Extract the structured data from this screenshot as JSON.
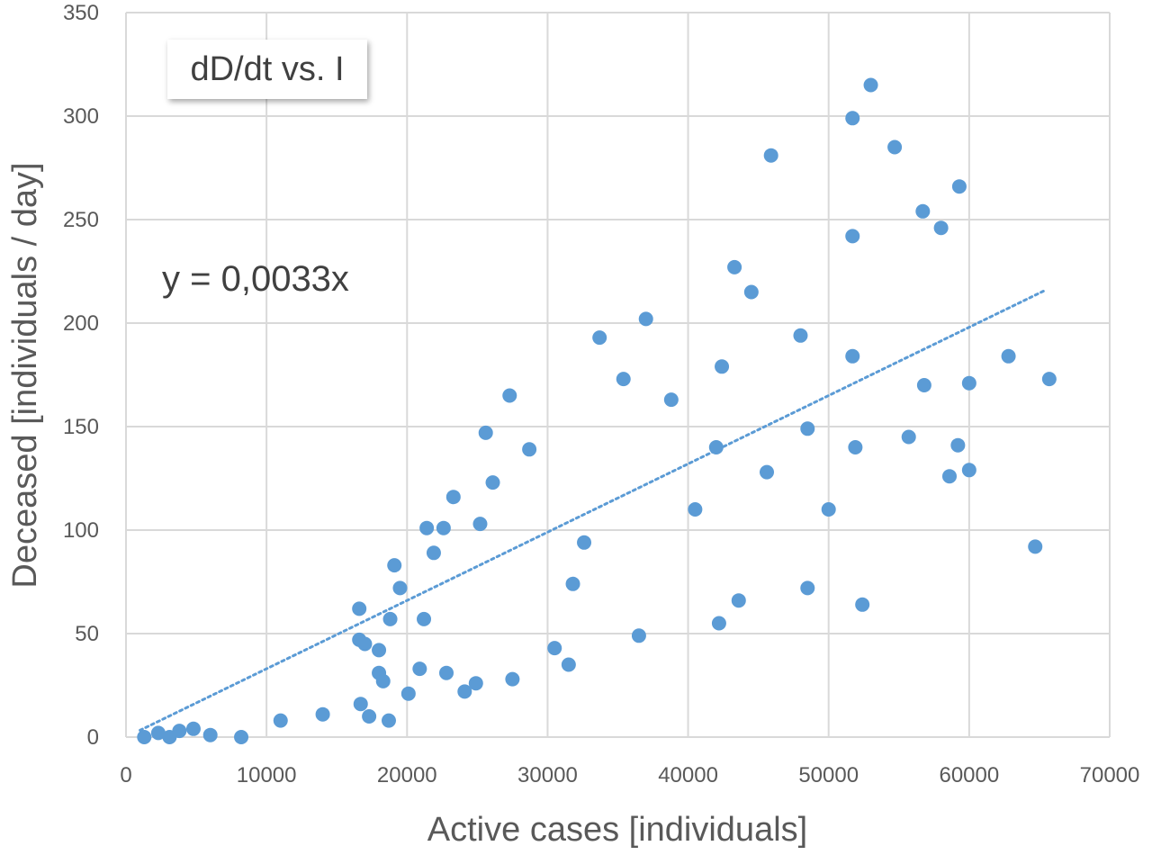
{
  "chart_data": {
    "type": "scatter",
    "title": "dD/dt vs. I",
    "xlabel": "Active cases [individuals]",
    "ylabel": "Deceased [individuals / day]",
    "xlim": [
      0,
      70000
    ],
    "ylim": [
      0,
      350
    ],
    "x_ticks": [
      "0",
      "10000",
      "20000",
      "30000",
      "40000",
      "50000",
      "60000",
      "70000"
    ],
    "y_ticks": [
      "0",
      "50",
      "100",
      "150",
      "200",
      "250",
      "300",
      "350"
    ],
    "grid": true,
    "marker_color": "#5b9bd5",
    "trendline": {
      "label": "y = 0,0033x",
      "slope": 0.0033,
      "x_range": [
        1000,
        65500
      ],
      "style": "dotted",
      "color": "#5b9bd5"
    },
    "points": [
      {
        "x": 1300,
        "y": 0
      },
      {
        "x": 2300,
        "y": 2
      },
      {
        "x": 3100,
        "y": 0
      },
      {
        "x": 3800,
        "y": 3
      },
      {
        "x": 4800,
        "y": 4
      },
      {
        "x": 6000,
        "y": 1
      },
      {
        "x": 8200,
        "y": 0
      },
      {
        "x": 11000,
        "y": 8
      },
      {
        "x": 14000,
        "y": 11
      },
      {
        "x": 16600,
        "y": 62
      },
      {
        "x": 16600,
        "y": 47
      },
      {
        "x": 17000,
        "y": 45
      },
      {
        "x": 16700,
        "y": 16
      },
      {
        "x": 17300,
        "y": 10
      },
      {
        "x": 18000,
        "y": 42
      },
      {
        "x": 18000,
        "y": 31
      },
      {
        "x": 18300,
        "y": 27
      },
      {
        "x": 18700,
        "y": 8
      },
      {
        "x": 18800,
        "y": 57
      },
      {
        "x": 19100,
        "y": 83
      },
      {
        "x": 19500,
        "y": 72
      },
      {
        "x": 20100,
        "y": 21
      },
      {
        "x": 20900,
        "y": 33
      },
      {
        "x": 21200,
        "y": 57
      },
      {
        "x": 21400,
        "y": 101
      },
      {
        "x": 21900,
        "y": 89
      },
      {
        "x": 22600,
        "y": 101
      },
      {
        "x": 22800,
        "y": 31
      },
      {
        "x": 23300,
        "y": 116
      },
      {
        "x": 24100,
        "y": 22
      },
      {
        "x": 24900,
        "y": 26
      },
      {
        "x": 25200,
        "y": 103
      },
      {
        "x": 25600,
        "y": 147
      },
      {
        "x": 26100,
        "y": 123
      },
      {
        "x": 27300,
        "y": 165
      },
      {
        "x": 27500,
        "y": 28
      },
      {
        "x": 28700,
        "y": 139
      },
      {
        "x": 30500,
        "y": 43
      },
      {
        "x": 31500,
        "y": 35
      },
      {
        "x": 31800,
        "y": 74
      },
      {
        "x": 32600,
        "y": 94
      },
      {
        "x": 33700,
        "y": 193
      },
      {
        "x": 35400,
        "y": 173
      },
      {
        "x": 36500,
        "y": 49
      },
      {
        "x": 37000,
        "y": 202
      },
      {
        "x": 38800,
        "y": 163
      },
      {
        "x": 40500,
        "y": 110
      },
      {
        "x": 42000,
        "y": 140
      },
      {
        "x": 42200,
        "y": 55
      },
      {
        "x": 42400,
        "y": 179
      },
      {
        "x": 43300,
        "y": 227
      },
      {
        "x": 43600,
        "y": 66
      },
      {
        "x": 44500,
        "y": 215
      },
      {
        "x": 45600,
        "y": 128
      },
      {
        "x": 45900,
        "y": 281
      },
      {
        "x": 48000,
        "y": 194
      },
      {
        "x": 48500,
        "y": 149
      },
      {
        "x": 48500,
        "y": 72
      },
      {
        "x": 50000,
        "y": 110
      },
      {
        "x": 51700,
        "y": 299
      },
      {
        "x": 51700,
        "y": 242
      },
      {
        "x": 51700,
        "y": 184
      },
      {
        "x": 51900,
        "y": 140
      },
      {
        "x": 52400,
        "y": 64
      },
      {
        "x": 53000,
        "y": 315
      },
      {
        "x": 54700,
        "y": 285
      },
      {
        "x": 55700,
        "y": 145
      },
      {
        "x": 56700,
        "y": 254
      },
      {
        "x": 56800,
        "y": 170
      },
      {
        "x": 58000,
        "y": 246
      },
      {
        "x": 58600,
        "y": 126
      },
      {
        "x": 59200,
        "y": 141
      },
      {
        "x": 59300,
        "y": 266
      },
      {
        "x": 60000,
        "y": 171
      },
      {
        "x": 60000,
        "y": 129
      },
      {
        "x": 62800,
        "y": 184
      },
      {
        "x": 64700,
        "y": 92
      },
      {
        "x": 65700,
        "y": 173
      }
    ]
  }
}
